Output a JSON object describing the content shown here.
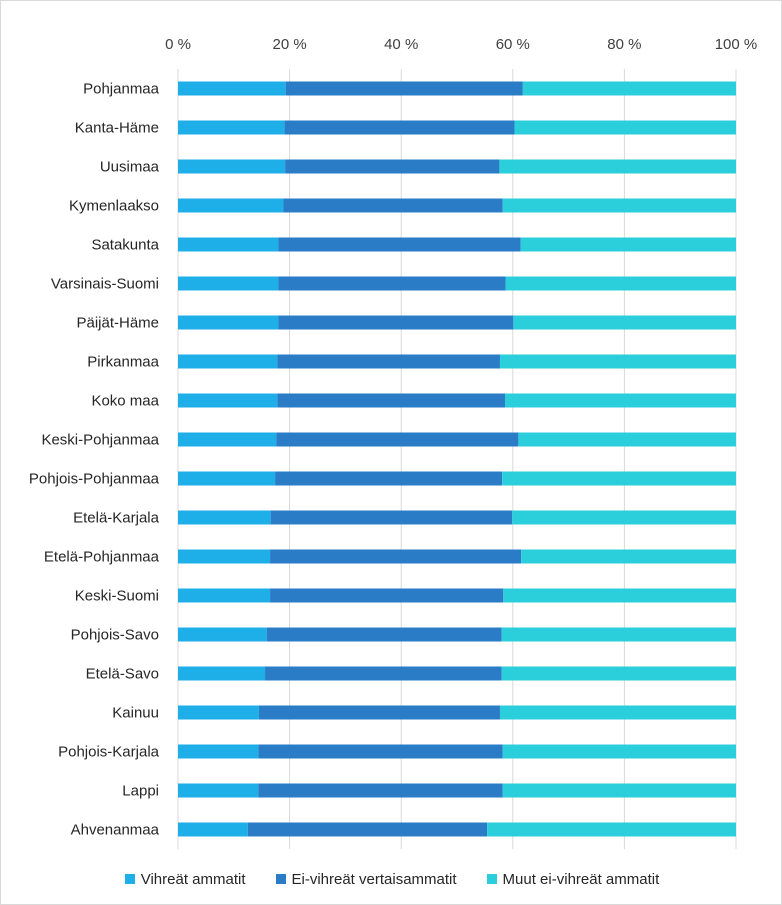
{
  "chart_data": {
    "type": "bar",
    "orientation": "horizontal",
    "stacked": "percent",
    "title": "",
    "xlabel": "",
    "ylabel": "",
    "xlim": [
      0,
      100
    ],
    "x_ticks": [
      "0 %",
      "20 %",
      "40 %",
      "60 %",
      "80 %",
      "100 %"
    ],
    "grid": "vertical",
    "legend_position": "bottom",
    "categories": [
      "Pohjanmaa",
      "Kanta-Häme",
      "Uusimaa",
      "Kymenlaakso",
      "Satakunta",
      "Varsinais-Suomi",
      "Päijät-Häme",
      "Pirkanmaa",
      "Koko maa",
      "Keski-Pohjanmaa",
      "Pohjois-Pohjanmaa",
      "Etelä-Karjala",
      "Etelä-Pohjanmaa",
      "Keski-Suomi",
      "Pohjois-Savo",
      "Etelä-Savo",
      "Kainuu",
      "Pohjois-Karjala",
      "Lappi",
      "Ahvenanmaa"
    ],
    "series": [
      {
        "name": "Vihreät ammatit",
        "color": "#1eaee8",
        "values": [
          19.3,
          19.1,
          19.2,
          18.9,
          18.0,
          18.0,
          18.0,
          17.8,
          17.8,
          17.6,
          17.4,
          16.6,
          16.5,
          16.5,
          15.9,
          15.6,
          14.5,
          14.4,
          14.4,
          12.5
        ]
      },
      {
        "name": "Ei-vihreät vertaisammatit",
        "color": "#2a7cc7",
        "values": [
          42.5,
          41.2,
          38.4,
          39.3,
          43.4,
          40.7,
          42.1,
          39.9,
          40.8,
          43.4,
          40.7,
          43.3,
          45.0,
          41.8,
          42.1,
          42.4,
          43.2,
          43.8,
          43.8,
          42.9
        ]
      },
      {
        "name": "Muut ei-vihreät ammatit",
        "color": "#2bcedb",
        "values": [
          38.2,
          39.7,
          42.4,
          41.8,
          38.6,
          41.3,
          39.9,
          42.3,
          41.4,
          39.0,
          41.9,
          40.1,
          38.5,
          41.7,
          42.0,
          42.0,
          42.3,
          41.8,
          41.8,
          44.6
        ]
      }
    ]
  }
}
